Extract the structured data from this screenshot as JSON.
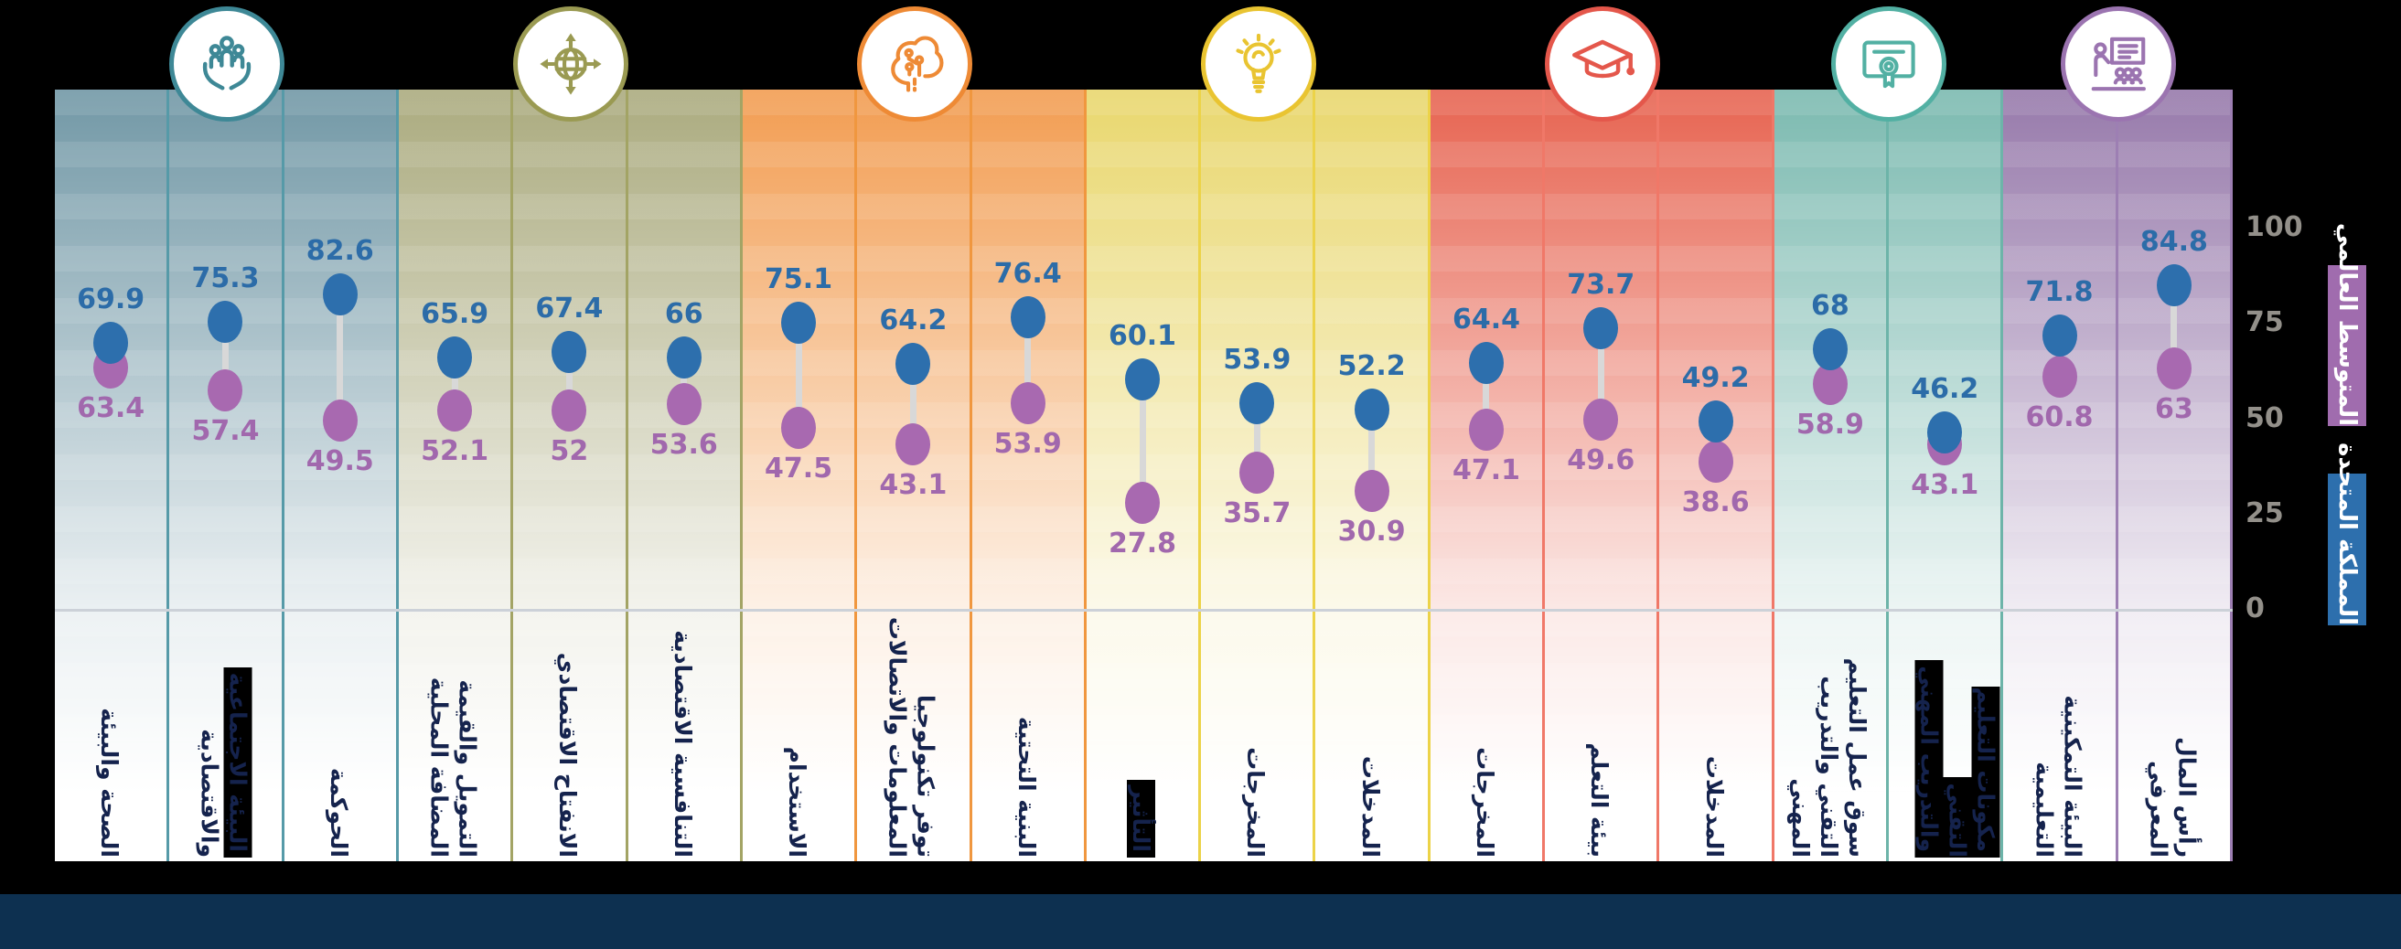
{
  "colors": {
    "uk_blue": "#2d6fad",
    "global_purple": "#a869b0",
    "connector_gray": "#d8d8d8",
    "footer_navy": "#0d3050",
    "label_navy": "#15234d"
  },
  "axis": {
    "ticks": [
      100,
      75,
      50,
      25,
      0
    ],
    "min": 0,
    "max": 100
  },
  "legend": [
    {
      "label": "المتوسط العالمي",
      "color": "#a06cae",
      "series": "global_avg"
    },
    {
      "label": "المملكة المتحدة",
      "color": "#2d6fad",
      "series": "uk"
    }
  ],
  "chart_data": {
    "type": "dumbbell",
    "series_names": {
      "uk": "المملكة المتحدة",
      "global_avg": "المتوسط العالمي"
    },
    "ylim": [
      0,
      100
    ],
    "sections": [
      {
        "icon": "family-care-icon",
        "color": "#7298a6",
        "divider_color": "#569aa8",
        "icon_color": "#3e8896",
        "columns": [
          {
            "label_lines": [
              "الصحة والبيئة"
            ],
            "uk": 69.9,
            "global_avg": 63.4
          },
          {
            "label_lines": [
              "البيئة الاجتماعية",
              "والاقتصادية"
            ],
            "highlight_lines": [
              0
            ],
            "uk": 75.3,
            "global_avg": 57.4
          },
          {
            "label_lines": [
              "الحوكمة"
            ],
            "uk": 82.6,
            "global_avg": 49.5
          }
        ]
      },
      {
        "icon": "globe-expansion-icon",
        "color": "#abab7f",
        "divider_color": "#a3a465",
        "icon_color": "#9a9a52",
        "columns": [
          {
            "label_lines": [
              "التمويل والقيمة",
              "المضافة المحلية"
            ],
            "uk": 65.9,
            "global_avg": 52.1
          },
          {
            "label_lines": [
              "الانفتاح الاقتصادي"
            ],
            "uk": 67.4,
            "global_avg": 52
          },
          {
            "label_lines": [
              "التنافسية الاقتصادية"
            ],
            "uk": 66,
            "global_avg": 53.6
          }
        ]
      },
      {
        "icon": "digital-brain-icon",
        "color": "#f29d52",
        "divider_color": "#f0973f",
        "icon_color": "#ee8a35",
        "columns": [
          {
            "label_lines": [
              "الاستخدام"
            ],
            "uk": 75.1,
            "global_avg": 47.5
          },
          {
            "label_lines": [
              "توفر تكنولوجيا",
              "المعلومات والاتصالات"
            ],
            "uk": 64.2,
            "global_avg": 43.1
          },
          {
            "label_lines": [
              "البنية التحتية"
            ],
            "uk": 76.4,
            "global_avg": 53.9
          }
        ]
      },
      {
        "icon": "lightbulb-icon",
        "color": "#e9d76e",
        "divider_color": "#ecd348",
        "icon_color": "#e9c431",
        "columns": [
          {
            "label_lines": [
              "التأثير"
            ],
            "highlight_lines": [
              0
            ],
            "uk": 60.1,
            "global_avg": 27.8
          },
          {
            "label_lines": [
              "المخرجات"
            ],
            "uk": 53.9,
            "global_avg": 35.7
          },
          {
            "label_lines": [
              "المدخلات"
            ],
            "uk": 52.2,
            "global_avg": 30.9
          }
        ]
      },
      {
        "icon": "graduation-cap-icon",
        "color": "#e76451",
        "divider_color": "#f07868",
        "icon_color": "#e4574b",
        "columns": [
          {
            "label_lines": [
              "المخرجات"
            ],
            "uk": 64.4,
            "global_avg": 47.1
          },
          {
            "label_lines": [
              "بيئة التعلم"
            ],
            "uk": 73.7,
            "global_avg": 49.6
          },
          {
            "label_lines": [
              "المدخلات"
            ],
            "uk": 49.2,
            "global_avg": 38.6
          }
        ]
      },
      {
        "icon": "certificate-icon",
        "color": "#7cbab0",
        "divider_color": "#6db4a9",
        "icon_color": "#52b0a3",
        "columns": [
          {
            "label_lines": [
              "سوق عمل التعليم",
              "التقني والتدريب",
              "المهني"
            ],
            "uk": 68,
            "global_avg": 58.9
          },
          {
            "label_lines": [
              "مكونات التعليم التقني",
              "والتدريب المهني"
            ],
            "highlight_lines": [
              0,
              1
            ],
            "uk": 46.2,
            "global_avg": 43.1
          }
        ]
      },
      {
        "icon": "classroom-training-icon",
        "color": "#977aab",
        "divider_color": "#9d7fb3",
        "icon_color": "#9b74b0",
        "columns": [
          {
            "label_lines": [
              "البيئة التمكينية",
              "التعليمية"
            ],
            "uk": 71.8,
            "global_avg": 60.8
          },
          {
            "label_lines": [
              "رأس المال",
              "المعرفي"
            ],
            "uk": 84.8,
            "global_avg": 63
          }
        ]
      }
    ]
  }
}
